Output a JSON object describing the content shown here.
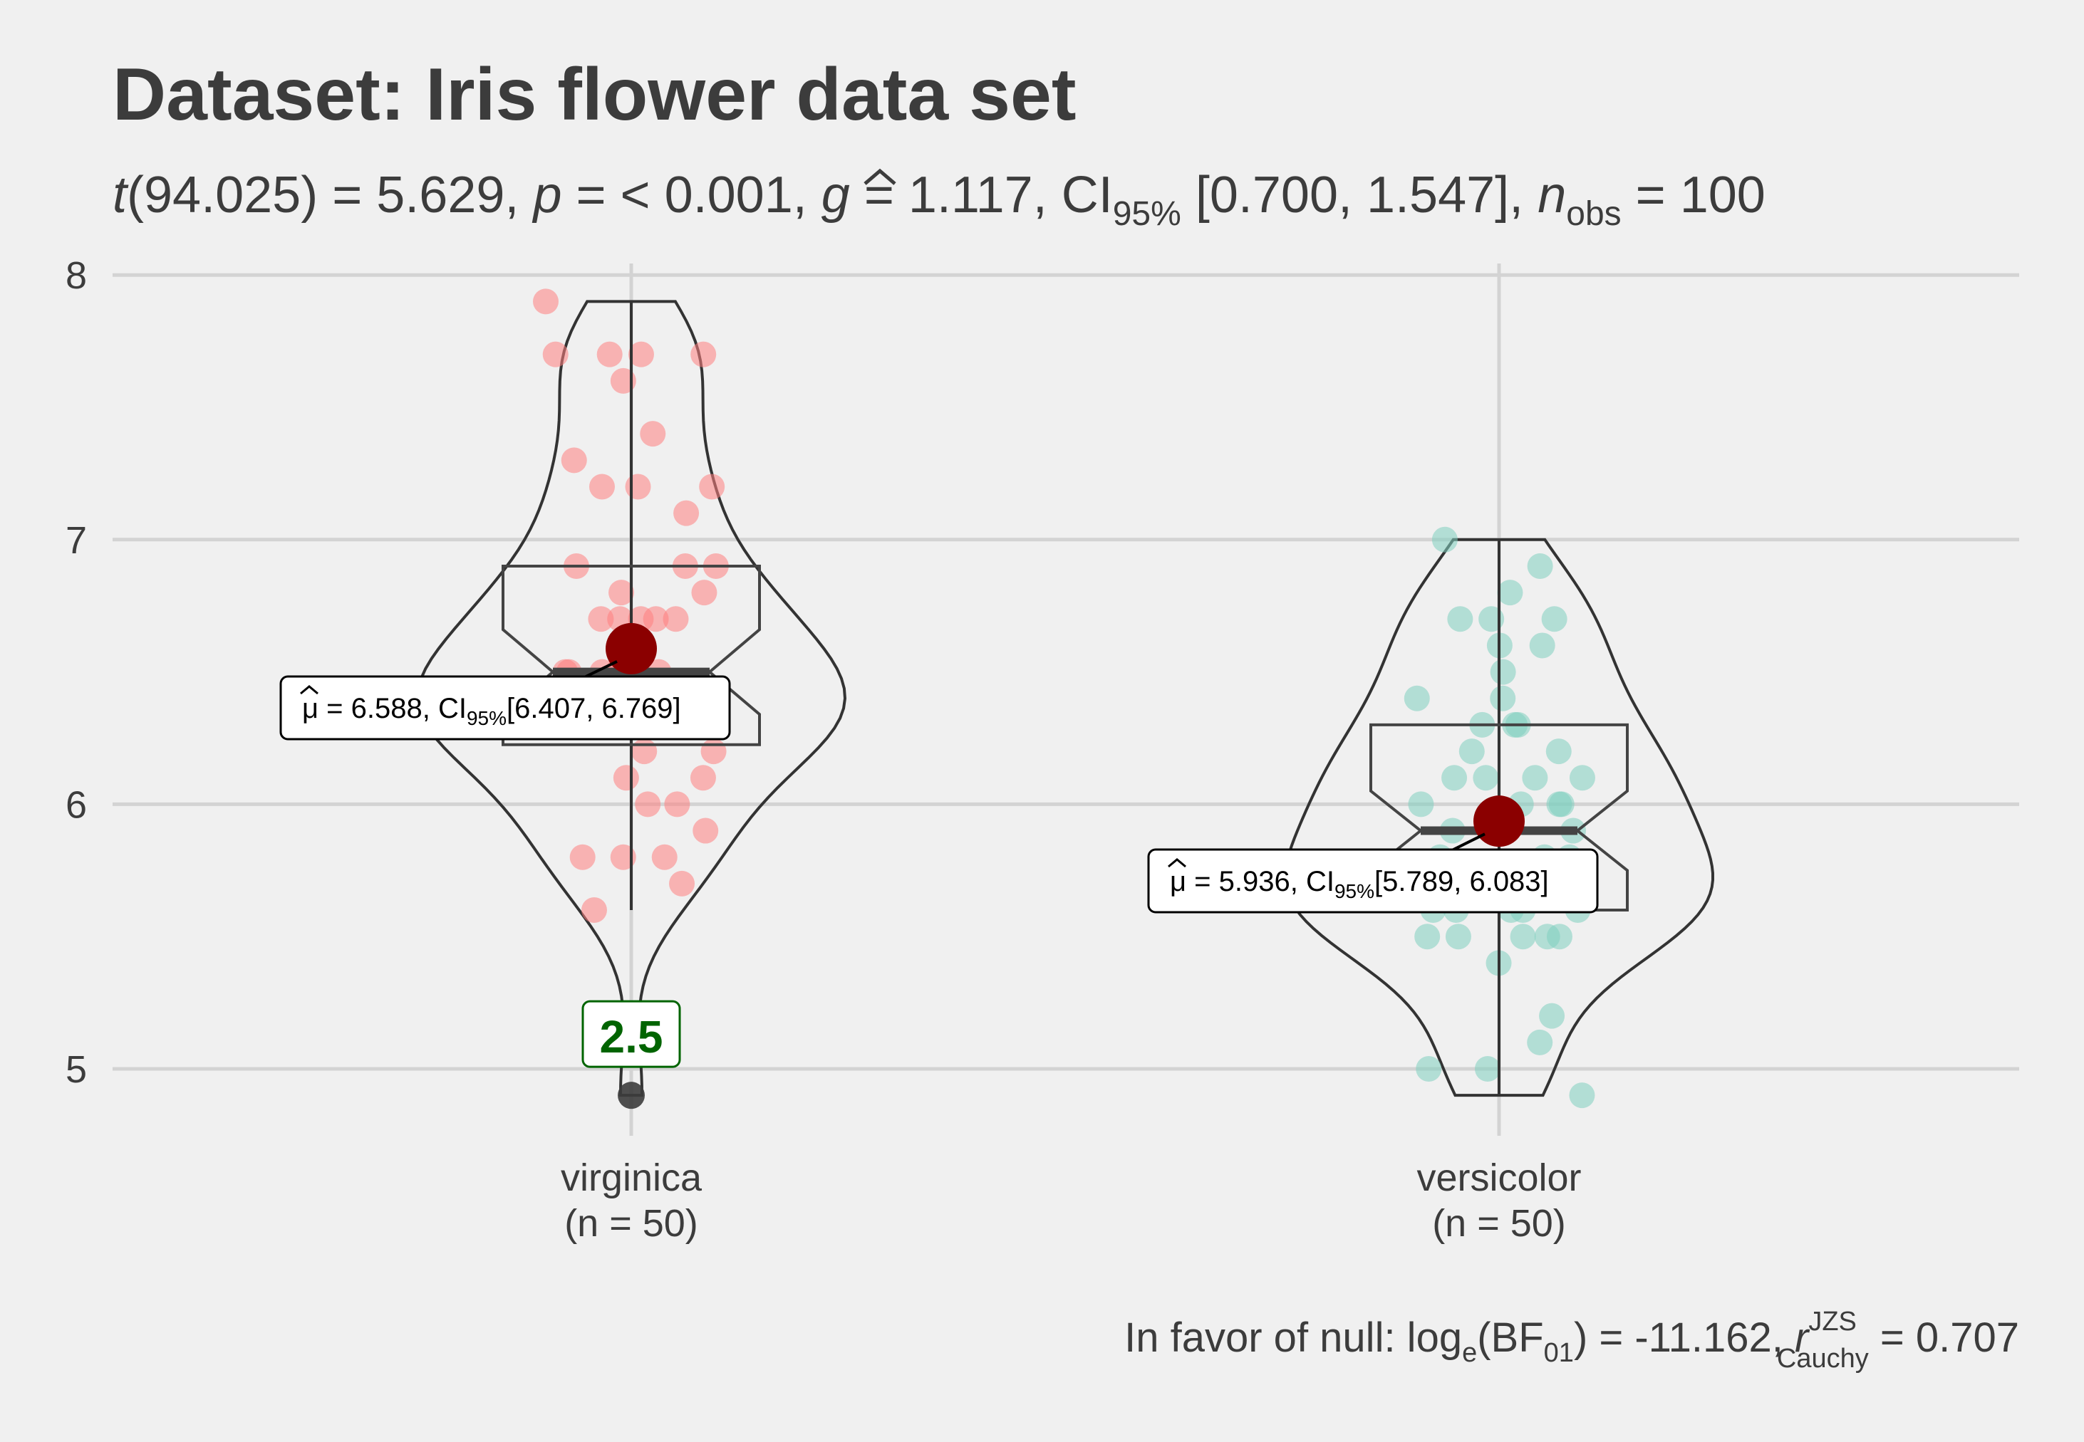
{
  "title": "Dataset: Iris flower data set",
  "subtitle": {
    "t_symbol": "t",
    "t_df": "(94.025) = 5.629, ",
    "p_symbol": "p",
    "p_text": " = < 0.001, ",
    "g_symbol": "g",
    "g_text": " = 1.117, CI",
    "ci_sub": "95%",
    "ci_text": " [0.700, 1.547], ",
    "n_symbol": "n",
    "n_sub": "obs",
    "n_text": " = 100"
  },
  "caption": {
    "prefix": "In favor of null: log",
    "e_sub": "e",
    "bf": "(BF",
    "bf_sub": "01",
    "mid": ") = -11.162, ",
    "r_symbol": "r",
    "r_sup": "JZS",
    "r_sub": "Cauchy",
    "suffix": " = 0.707"
  },
  "colors": {
    "background": "#f0f0f0",
    "grid": "#d3d3d3",
    "virginica_points": "#ff7f7f",
    "versicolor_points": "#7fcfbf",
    "mean_point": "#8b0000",
    "outline": "#333333",
    "outlier_label": "#006400"
  },
  "chart_data": {
    "type": "violin",
    "ylim": [
      4.9,
      8.0
    ],
    "yticks": [
      5,
      6,
      7,
      8
    ],
    "yticklabels": [
      "5",
      "6",
      "7",
      "8"
    ],
    "grid": true,
    "groups": [
      {
        "name": "virginica",
        "n_label": "(n = 50)",
        "mean": 6.588,
        "mean_label": {
          "mu": "μ",
          "eq": " = 6.588, CI",
          "ci_sub": "95%",
          "ci": "[6.407, 6.769]"
        },
        "box": {
          "q1": 6.225,
          "median": 6.5,
          "q3": 6.9,
          "whisker_low": 5.6,
          "whisker_high": 7.9,
          "notch_low": 6.34,
          "notch_high": 6.66
        },
        "outlier": {
          "value": 4.9,
          "label": "2.5"
        },
        "points": [
          7.9,
          7.7,
          7.7,
          7.7,
          7.7,
          7.6,
          7.4,
          7.3,
          7.2,
          7.2,
          7.2,
          7.1,
          6.9,
          6.9,
          6.9,
          6.8,
          6.8,
          6.7,
          6.7,
          6.7,
          6.7,
          6.7,
          6.5,
          6.5,
          6.5,
          6.5,
          6.4,
          6.4,
          6.4,
          6.4,
          6.3,
          6.3,
          6.3,
          6.3,
          6.3,
          6.2,
          6.2,
          6.1,
          6.1,
          6.0,
          6.0,
          5.9,
          5.8,
          5.8,
          5.8,
          5.7,
          5.6,
          6.4,
          6.3,
          6.5
        ]
      },
      {
        "name": "versicolor",
        "n_label": "(n = 50)",
        "mean": 5.936,
        "mean_label": {
          "mu": "μ",
          "eq": " = 5.936, CI",
          "ci_sub": "95%",
          "ci": "[5.789, 6.083]"
        },
        "box": {
          "q1": 5.6,
          "median": 5.9,
          "q3": 6.3,
          "whisker_low": 4.9,
          "whisker_high": 7.0,
          "notch_low": 5.75,
          "notch_high": 6.05
        },
        "points": [
          7.0,
          6.9,
          6.8,
          6.7,
          6.7,
          6.7,
          6.6,
          6.6,
          6.5,
          6.4,
          6.4,
          6.3,
          6.3,
          6.3,
          6.2,
          6.2,
          6.1,
          6.1,
          6.1,
          6.1,
          6.0,
          6.0,
          6.0,
          6.0,
          5.9,
          5.9,
          5.8,
          5.8,
          5.8,
          5.7,
          5.7,
          5.7,
          5.7,
          5.7,
          5.6,
          5.6,
          5.6,
          5.6,
          5.6,
          5.5,
          5.5,
          5.5,
          5.5,
          5.5,
          5.4,
          5.2,
          5.1,
          5.0,
          5.0,
          4.9
        ]
      }
    ]
  }
}
